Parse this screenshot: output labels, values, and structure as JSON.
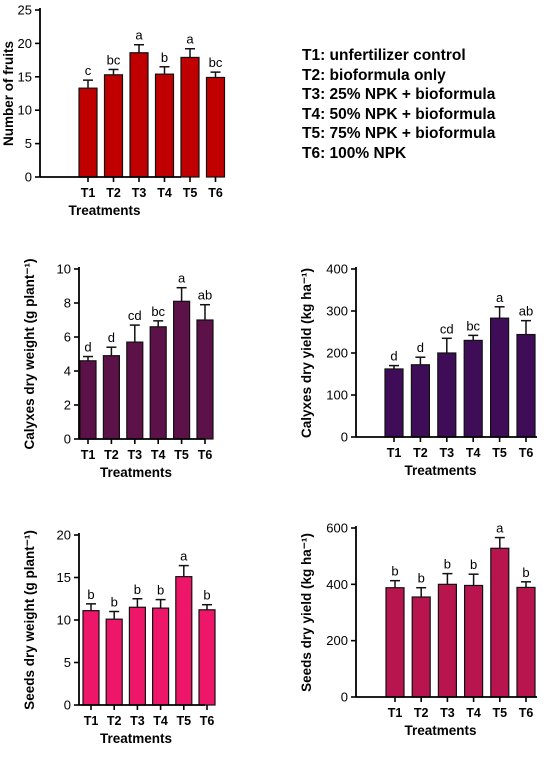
{
  "legend": [
    "T1: unfertilizer control",
    "T2: bioformula only",
    "T3: 25% NPK + bioformula",
    "T4: 50% NPK + bioformula",
    "T5: 75% NPK + bioformula",
    "T6: 100% NPK"
  ],
  "chart_data": [
    {
      "type": "bar",
      "panel": "fruits",
      "categories": [
        "T1",
        "T2",
        "T3",
        "T4",
        "T5",
        "T6"
      ],
      "values": [
        13.3,
        15.3,
        18.6,
        15.4,
        17.9,
        14.9
      ],
      "errors": [
        1.2,
        0.8,
        1.2,
        1.1,
        1.3,
        0.8
      ],
      "letters": [
        "c",
        "bc",
        "a",
        "b",
        "a",
        "bc"
      ],
      "ylabel": "Number of fruits",
      "xlabel": "Treatments",
      "ylim": [
        0,
        25
      ],
      "yticks": [
        0,
        5,
        10,
        15,
        20,
        25
      ],
      "color": "#c00000"
    },
    {
      "type": "bar",
      "panel": "calyxes-weight",
      "categories": [
        "T1",
        "T2",
        "T3",
        "T4",
        "T5",
        "T6"
      ],
      "values": [
        4.6,
        4.9,
        5.7,
        6.6,
        8.1,
        7.0
      ],
      "errors": [
        0.25,
        0.5,
        1.0,
        0.35,
        0.8,
        0.9
      ],
      "letters": [
        "d",
        "d",
        "cd",
        "bc",
        "a",
        "ab"
      ],
      "ylabel": "Calyxes dry weight (g plant⁻¹)",
      "xlabel": "Treatments",
      "ylim": [
        0,
        10
      ],
      "yticks": [
        0,
        2,
        4,
        6,
        8,
        10
      ],
      "color": "#5c1148"
    },
    {
      "type": "bar",
      "panel": "calyxes-yield",
      "categories": [
        "T1",
        "T2",
        "T3",
        "T4",
        "T5",
        "T6"
      ],
      "values": [
        162,
        172,
        200,
        230,
        283,
        244
      ],
      "errors": [
        8,
        18,
        35,
        12,
        27,
        33
      ],
      "letters": [
        "d",
        "d",
        "cd",
        "bc",
        "a",
        "ab"
      ],
      "ylabel": "Calyxes dry yield (kg ha⁻¹)",
      "xlabel": "Treatments",
      "ylim": [
        0,
        400
      ],
      "yticks": [
        0,
        100,
        200,
        300,
        400
      ],
      "color": "#3f0d58"
    },
    {
      "type": "bar",
      "panel": "seeds-weight",
      "categories": [
        "T1",
        "T2",
        "T3",
        "T4",
        "T5",
        "T6"
      ],
      "values": [
        11.1,
        10.1,
        11.5,
        11.4,
        15.1,
        11.2
      ],
      "errors": [
        0.8,
        0.9,
        1.0,
        1.0,
        1.3,
        0.6
      ],
      "letters": [
        "b",
        "b",
        "b",
        "b",
        "a",
        "b"
      ],
      "ylabel": "Seeds dry weight (g plant⁻¹)",
      "xlabel": "Treatments",
      "ylim": [
        0,
        20
      ],
      "yticks": [
        0,
        5,
        10,
        15,
        20
      ],
      "color": "#ee1669"
    },
    {
      "type": "bar",
      "panel": "seeds-yield",
      "categories": [
        "T1",
        "T2",
        "T3",
        "T4",
        "T5",
        "T6"
      ],
      "values": [
        388,
        355,
        400,
        396,
        528,
        389
      ],
      "errors": [
        25,
        33,
        38,
        40,
        38,
        20
      ],
      "letters": [
        "b",
        "b",
        "b",
        "b",
        "a",
        "b"
      ],
      "ylabel": "Seeds dry yield (kg ha⁻¹)",
      "xlabel": "Treatments",
      "ylim": [
        0,
        600
      ],
      "yticks": [
        0,
        200,
        400,
        600
      ],
      "color": "#b8154f"
    }
  ]
}
